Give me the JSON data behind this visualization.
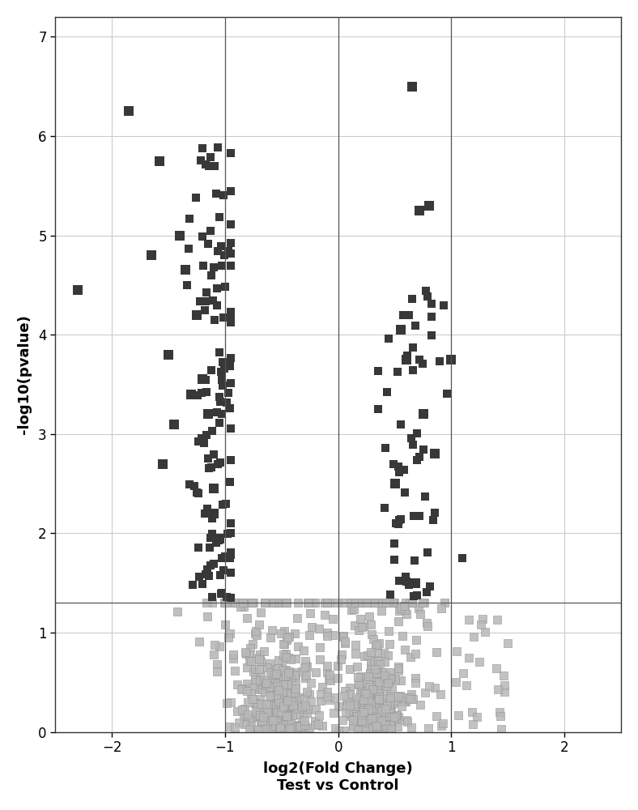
{
  "title": "",
  "xlabel": "log2(Fold Change)\nTest vs Control",
  "ylabel": "-log10(pvalue)",
  "xlim": [
    -2.5,
    2.5
  ],
  "ylim": [
    0,
    7.2
  ],
  "xticks": [
    -2,
    -1,
    0,
    1,
    2
  ],
  "yticks": [
    0,
    1,
    2,
    3,
    4,
    5,
    6,
    7
  ],
  "vlines": [
    -1.0,
    0.0,
    1.0
  ],
  "hline": 1.301,
  "fc_threshold": 1.0,
  "pval_threshold": 1.301,
  "dark_color": "#383838",
  "light_color": "#b8b8b8",
  "background_color": "#ffffff",
  "grid_color": "#cccccc",
  "marker_size": 60,
  "seed": 42
}
